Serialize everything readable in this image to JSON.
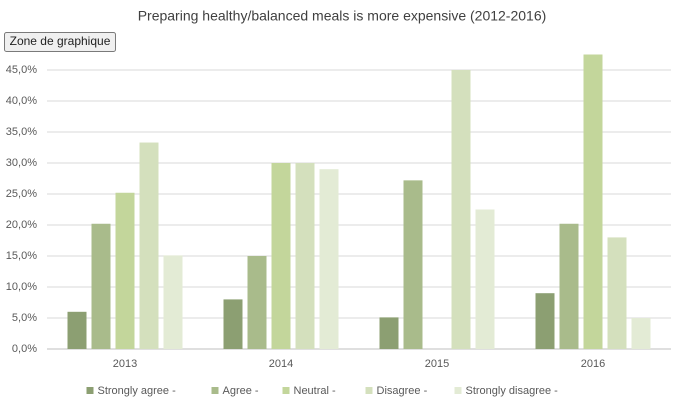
{
  "chart_data": {
    "type": "bar",
    "title": "Preparing healthy/balanced meals is more expensive (2012-2016)",
    "annotation": "Zone de graphique",
    "categories": [
      "2013",
      "2014",
      "2015",
      "2016"
    ],
    "series": [
      {
        "name": "Strongly agree -",
        "color": "#8c9f72",
        "values": [
          6,
          8,
          5.1,
          9
        ]
      },
      {
        "name": "Agree -",
        "color": "#a9bb8b",
        "values": [
          20.2,
          15,
          27.2,
          20.2
        ]
      },
      {
        "name": "Neutral -",
        "color": "#c3d69b",
        "values": [
          25.2,
          30,
          null,
          47.5
        ]
      },
      {
        "name": "Disagree -",
        "color": "#d4e0bd",
        "values": [
          33.3,
          30,
          45,
          18
        ]
      },
      {
        "name": "Strongly disagree -",
        "color": "#e3ebd5",
        "values": [
          15.1,
          29,
          22.5,
          5
        ]
      }
    ],
    "ylim": [
      0,
      50
    ],
    "yticks": [
      {
        "value": 0,
        "label": "0,0%"
      },
      {
        "value": 5,
        "label": "5,0%"
      },
      {
        "value": 10,
        "label": "10,0%"
      },
      {
        "value": 15,
        "label": "15,0%"
      },
      {
        "value": 20,
        "label": "20,0%"
      },
      {
        "value": 25,
        "label": "25,0%"
      },
      {
        "value": 30,
        "label": "30,0%"
      },
      {
        "value": 35,
        "label": "35,0%"
      },
      {
        "value": 40,
        "label": "40,0%"
      },
      {
        "value": 45,
        "label": "45,0%"
      }
    ],
    "grid": true
  }
}
